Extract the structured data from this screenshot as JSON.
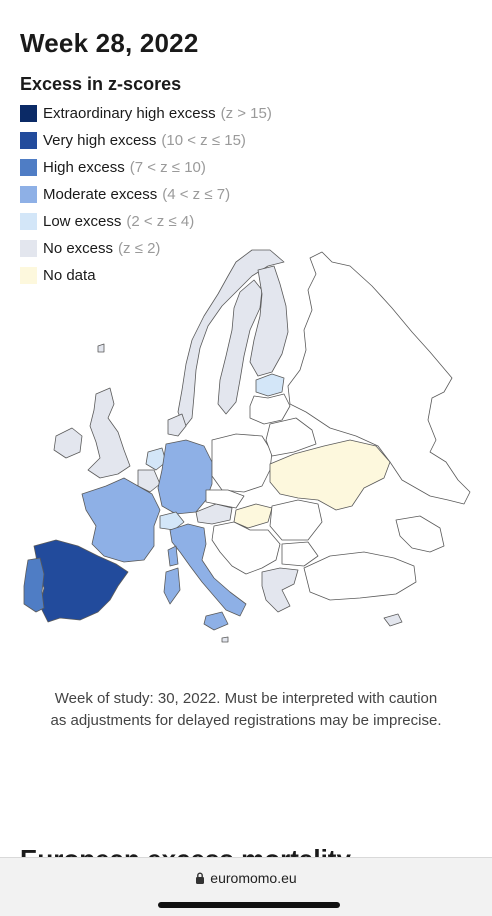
{
  "header": {
    "title": "Week 28, 2022"
  },
  "legend": {
    "title": "Excess in z-scores",
    "items": [
      {
        "label": "Extraordinary high excess",
        "range": "(z > 15)",
        "color": "#0b2a66"
      },
      {
        "label": "Very high excess",
        "range": "(10 < z ≤ 15)",
        "color": "#224b9c"
      },
      {
        "label": "High excess",
        "range": "(7 < z ≤ 10)",
        "color": "#4f7dc5"
      },
      {
        "label": "Moderate excess",
        "range": "(4 < z ≤ 7)",
        "color": "#8eb0e6"
      },
      {
        "label": "Low excess",
        "range": "(2 < z ≤ 4)",
        "color": "#d3e6f8"
      },
      {
        "label": "No excess",
        "range": "(z ≤ 2)",
        "color": "#e3e6ee"
      },
      {
        "label": "No data",
        "range": "",
        "color": "#fdf8dd"
      }
    ]
  },
  "map": {
    "regions": [
      {
        "name": "Norway",
        "category": "No excess"
      },
      {
        "name": "Sweden",
        "category": "No excess"
      },
      {
        "name": "Finland",
        "category": "No excess"
      },
      {
        "name": "Denmark",
        "category": "No excess"
      },
      {
        "name": "Estonia",
        "category": "Low excess"
      },
      {
        "name": "Ireland",
        "category": "No excess"
      },
      {
        "name": "United Kingdom",
        "category": "No excess"
      },
      {
        "name": "Netherlands",
        "category": "Low excess"
      },
      {
        "name": "Belgium",
        "category": "No excess"
      },
      {
        "name": "Luxembourg",
        "category": "No excess"
      },
      {
        "name": "France",
        "category": "Moderate excess"
      },
      {
        "name": "Germany",
        "category": "Moderate excess"
      },
      {
        "name": "Switzerland",
        "category": "Low excess"
      },
      {
        "name": "Austria",
        "category": "No excess"
      },
      {
        "name": "Italy",
        "category": "Moderate excess"
      },
      {
        "name": "Spain",
        "category": "Very high excess"
      },
      {
        "name": "Portugal",
        "category": "High excess"
      },
      {
        "name": "Ukraine",
        "category": "No data"
      },
      {
        "name": "Hungary",
        "category": "No data"
      },
      {
        "name": "Greece",
        "category": "No excess"
      },
      {
        "name": "Cyprus",
        "category": "No excess"
      },
      {
        "name": "Malta",
        "category": "No excess"
      }
    ]
  },
  "caption": {
    "line1": "Week of study: 30, 2022. Must be interpreted with caution",
    "line2": "as adjustments for delayed registrations may be imprecise."
  },
  "next_section": {
    "heading": "European excess mortality"
  },
  "browser": {
    "url": "euromomo.eu",
    "lock_icon": "lock-icon"
  }
}
